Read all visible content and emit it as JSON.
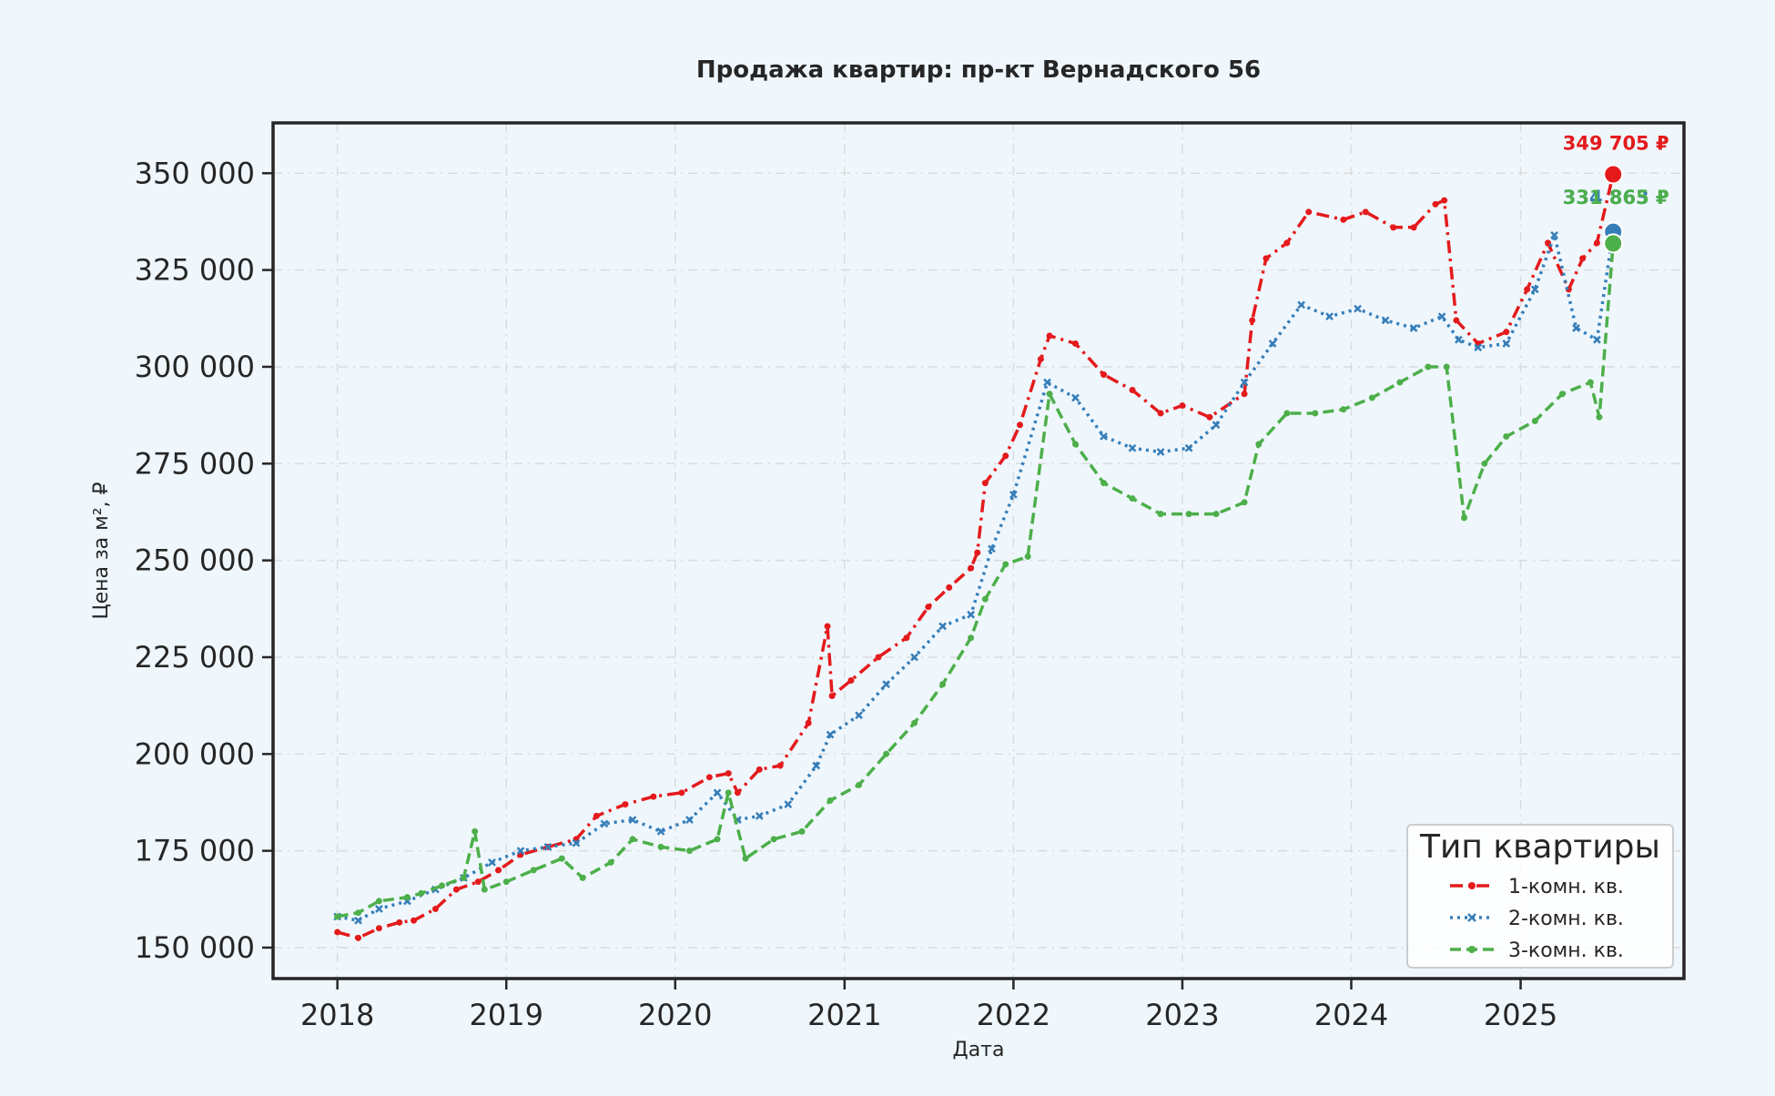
{
  "chart_data": {
    "type": "line",
    "title": "Продажа квартир: пр-кт Вернадского 56",
    "xlabel": "Дата",
    "ylabel": "Цена за м², ₽",
    "xlim": [
      "2017-08-15",
      "2025-12-20"
    ],
    "ylim": [
      142000,
      363000
    ],
    "x_ticks": [
      "2018",
      "2019",
      "2020",
      "2021",
      "2022",
      "2023",
      "2024",
      "2025"
    ],
    "y_ticks": [
      150000,
      175000,
      200000,
      225000,
      250000,
      275000,
      300000,
      325000,
      350000
    ],
    "y_tick_labels": [
      "150 000",
      "175 000",
      "200 000",
      "225 000",
      "250 000",
      "275 000",
      "300 000",
      "325 000",
      "350 000"
    ],
    "grid": true,
    "legend": {
      "title": "Тип квартиры",
      "position": "lower-right"
    },
    "series": [
      {
        "name": "1-комн. кв.",
        "color": "#e41a1c",
        "line_style": "dashdot",
        "marker": "circle",
        "x": [
          "2018-01-01",
          "2018-02-15",
          "2018-04-01",
          "2018-05-15",
          "2018-06-15",
          "2018-08-01",
          "2018-09-15",
          "2018-11-01",
          "2018-12-15",
          "2019-02-01",
          "2019-04-01",
          "2019-06-01",
          "2019-07-15",
          "2019-09-15",
          "2019-11-15",
          "2020-01-15",
          "2020-03-15",
          "2020-04-25",
          "2020-05-15",
          "2020-07-01",
          "2020-08-15",
          "2020-10-15",
          "2020-11-25",
          "2020-12-05",
          "2021-01-15",
          "2021-03-15",
          "2021-05-15",
          "2021-07-01",
          "2021-08-15",
          "2021-10-01",
          "2021-10-15",
          "2021-11-01",
          "2021-12-15",
          "2022-01-15",
          "2022-03-01",
          "2022-03-20",
          "2022-05-15",
          "2022-07-15",
          "2022-09-15",
          "2022-11-15",
          "2023-01-01",
          "2023-03-01",
          "2023-05-15",
          "2023-06-01",
          "2023-07-01",
          "2023-08-15",
          "2023-10-01",
          "2023-12-15",
          "2024-02-01",
          "2024-04-01",
          "2024-05-15",
          "2024-07-01",
          "2024-07-20",
          "2024-08-15",
          "2024-10-01",
          "2024-12-01",
          "2025-01-15",
          "2025-03-01",
          "2025-04-15",
          "2025-05-15",
          "2025-06-15",
          "2025-07-20"
        ],
        "y": [
          154000,
          152500,
          155000,
          156500,
          157000,
          160000,
          165000,
          167000,
          170000,
          174000,
          176000,
          178000,
          184000,
          187000,
          189000,
          190000,
          194000,
          195000,
          190000,
          196000,
          197000,
          208000,
          233000,
          215000,
          219000,
          225000,
          230000,
          238000,
          243000,
          248000,
          252000,
          270000,
          277000,
          285000,
          302000,
          308000,
          306000,
          298000,
          294000,
          288000,
          290000,
          287000,
          293000,
          312000,
          328000,
          332000,
          340000,
          338000,
          340000,
          336000,
          336000,
          342000,
          343000,
          312000,
          306000,
          309000,
          320000,
          332000,
          320000,
          328000,
          332000,
          349705
        ]
      },
      {
        "name": "2-комн. кв.",
        "color": "#377eb8",
        "line_style": "dotted",
        "marker": "x",
        "x": [
          "2018-01-01",
          "2018-02-15",
          "2018-04-01",
          "2018-06-01",
          "2018-08-01",
          "2018-10-01",
          "2018-12-01",
          "2019-02-01",
          "2019-04-01",
          "2019-06-01",
          "2019-08-01",
          "2019-10-01",
          "2019-12-01",
          "2020-02-01",
          "2020-04-01",
          "2020-05-15",
          "2020-07-01",
          "2020-09-01",
          "2020-11-01",
          "2020-12-01",
          "2021-02-01",
          "2021-04-01",
          "2021-06-01",
          "2021-08-01",
          "2021-10-01",
          "2021-11-15",
          "2022-01-01",
          "2022-03-15",
          "2022-05-15",
          "2022-07-15",
          "2022-09-15",
          "2022-11-15",
          "2023-01-15",
          "2023-03-15",
          "2023-05-15",
          "2023-07-15",
          "2023-09-15",
          "2023-11-15",
          "2024-01-15",
          "2024-03-15",
          "2024-05-15",
          "2024-07-15",
          "2024-08-20",
          "2024-10-01",
          "2024-12-01",
          "2025-02-01",
          "2025-03-15",
          "2025-05-01",
          "2025-06-15",
          "2025-07-20"
        ],
        "y": [
          158000,
          157000,
          160000,
          162000,
          165000,
          168000,
          172000,
          175000,
          176000,
          177000,
          182000,
          183000,
          180000,
          183000,
          190000,
          183000,
          184000,
          187000,
          197000,
          205000,
          210000,
          218000,
          225000,
          233000,
          236000,
          253000,
          267000,
          296000,
          292000,
          282000,
          279000,
          278000,
          279000,
          285000,
          296000,
          306000,
          316000,
          313000,
          315000,
          312000,
          310000,
          313000,
          307000,
          305000,
          306000,
          320000,
          334000,
          310000,
          307000,
          334863
        ]
      },
      {
        "name": "3-комн. кв.",
        "color": "#4daf4a",
        "line_style": "dashed",
        "marker": "circle",
        "x": [
          "2018-01-01",
          "2018-02-15",
          "2018-04-01",
          "2018-06-01",
          "2018-07-01",
          "2018-08-15",
          "2018-10-01",
          "2018-10-25",
          "2018-11-15",
          "2019-01-01",
          "2019-03-01",
          "2019-05-01",
          "2019-06-15",
          "2019-08-15",
          "2019-10-01",
          "2019-12-01",
          "2020-02-01",
          "2020-04-01",
          "2020-04-25",
          "2020-06-01",
          "2020-08-01",
          "2020-10-01",
          "2020-12-01",
          "2021-02-01",
          "2021-04-01",
          "2021-06-01",
          "2021-08-01",
          "2021-10-01",
          "2021-11-01",
          "2021-12-15",
          "2022-02-01",
          "2022-03-20",
          "2022-05-15",
          "2022-07-15",
          "2022-09-15",
          "2022-11-15",
          "2023-01-15",
          "2023-03-15",
          "2023-05-15",
          "2023-06-15",
          "2023-08-15",
          "2023-10-15",
          "2023-12-15",
          "2024-02-15",
          "2024-04-15",
          "2024-06-15",
          "2024-07-25",
          "2024-09-01",
          "2024-10-15",
          "2024-12-01",
          "2025-02-01",
          "2025-04-01",
          "2025-06-01",
          "2025-06-20",
          "2025-07-20"
        ],
        "y": [
          158000,
          159000,
          162000,
          163000,
          164000,
          166000,
          168000,
          180000,
          165000,
          167000,
          170000,
          173000,
          168000,
          172000,
          178000,
          176000,
          175000,
          178000,
          190000,
          173000,
          178000,
          180000,
          188000,
          192000,
          200000,
          208000,
          218000,
          230000,
          240000,
          249000,
          251000,
          293000,
          280000,
          270000,
          266000,
          262000,
          262000,
          262000,
          265000,
          280000,
          288000,
          288000,
          289000,
          292000,
          296000,
          300000,
          300000,
          261000,
          275000,
          282000,
          286000,
          293000,
          296000,
          287000,
          331865
        ]
      }
    ],
    "annotations": [
      {
        "series": "1-комн. кв.",
        "text": "349 705 ₽",
        "color": "#e41a1c"
      },
      {
        "series": "2-комн. кв.",
        "text": "334 863 ₽",
        "color": "#377eb8"
      },
      {
        "series": "3-комн. кв.",
        "text": "331 865 ₽",
        "color": "#4daf4a"
      }
    ]
  }
}
